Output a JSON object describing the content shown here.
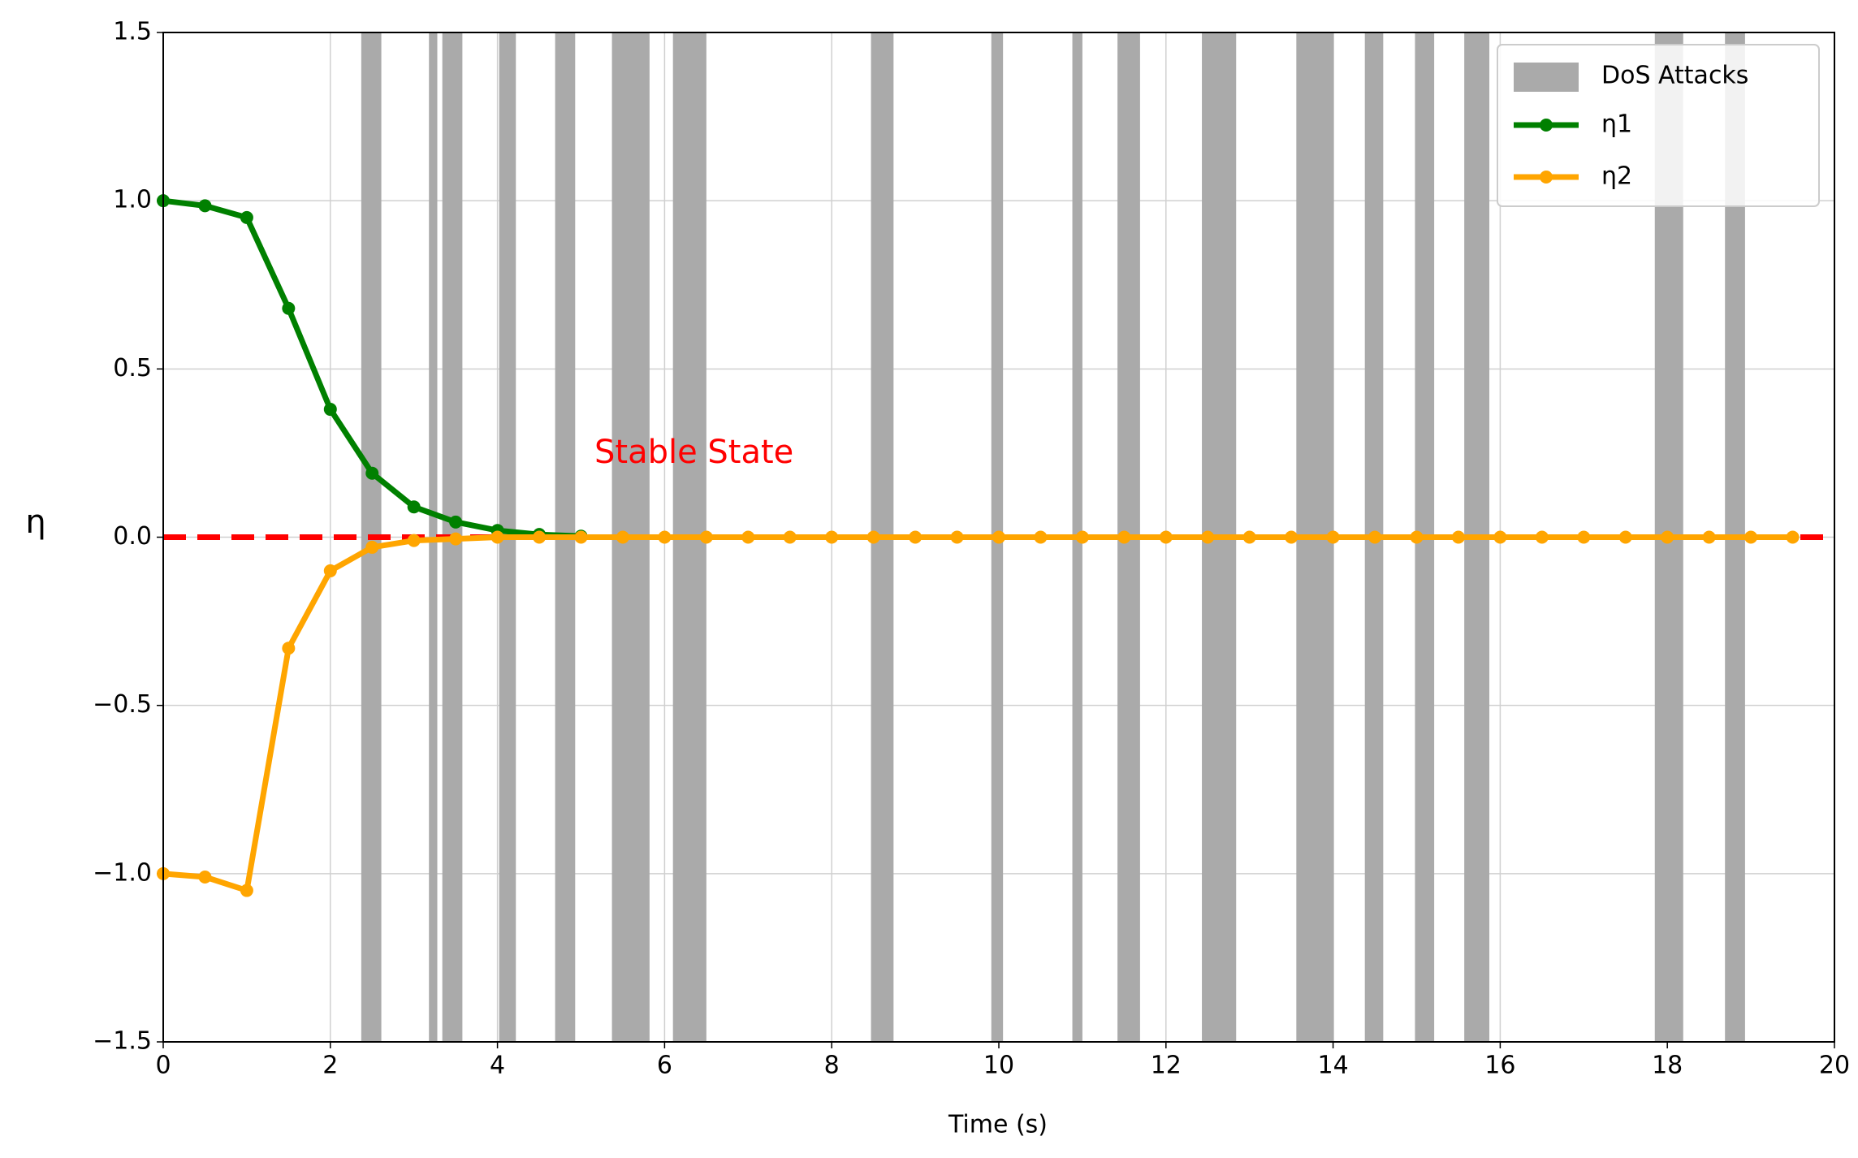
{
  "chart_data": {
    "type": "line",
    "xlabel": "Time (s)",
    "ylabel": "η",
    "xlim": [
      0,
      20
    ],
    "ylim": [
      -1.5,
      1.5
    ],
    "xticks": [
      0,
      2,
      4,
      6,
      8,
      10,
      12,
      14,
      16,
      18,
      20
    ],
    "yticks": [
      {
        "value": -1.5,
        "label": "−1.5"
      },
      {
        "value": -1.0,
        "label": "−1.0"
      },
      {
        "value": -0.5,
        "label": "−0.5"
      },
      {
        "value": 0,
        "label": "0.0"
      },
      {
        "value": 0.5,
        "label": "0.5"
      },
      {
        "value": 1.0,
        "label": "1.0"
      },
      1.5
    ],
    "grid": true,
    "legend": "upper right",
    "shaded_regions": {
      "name": "DoS Attacks",
      "color": "#aaaaaa",
      "intervals": [
        [
          2.37,
          2.61
        ],
        [
          3.18,
          3.28
        ],
        [
          3.34,
          3.58
        ],
        [
          4.02,
          4.22
        ],
        [
          4.69,
          4.93
        ],
        [
          5.37,
          5.82
        ],
        [
          6.1,
          6.5
        ],
        [
          8.47,
          8.74
        ],
        [
          9.91,
          10.05
        ],
        [
          10.88,
          11.0
        ],
        [
          11.42,
          11.69
        ],
        [
          12.43,
          12.84
        ],
        [
          13.56,
          14.01
        ],
        [
          14.38,
          14.6
        ],
        [
          14.98,
          15.21
        ],
        [
          15.57,
          15.87
        ],
        [
          17.85,
          18.19
        ],
        [
          18.69,
          18.93
        ]
      ]
    },
    "series": [
      {
        "name": "η1",
        "color": "#008000",
        "x": [
          0,
          0.5,
          1,
          1.5,
          2,
          2.5,
          3,
          3.5,
          4,
          4.5,
          5
        ],
        "values": [
          1.0,
          0.985,
          0.95,
          0.68,
          0.38,
          0.19,
          0.09,
          0.045,
          0.02,
          0.008,
          0.003
        ]
      },
      {
        "name": "η2",
        "color": "#ffa500",
        "x": [
          0,
          0.5,
          1,
          1.5,
          2,
          2.5,
          3,
          3.5,
          4,
          4.5,
          5,
          5.5,
          6,
          6.5,
          7,
          7.5,
          8,
          8.5,
          9,
          9.5,
          10,
          10.5,
          11,
          11.5,
          12,
          12.5,
          13,
          13.5,
          14,
          14.5,
          15,
          15.5,
          16,
          16.5,
          17,
          17.5,
          18,
          18.5,
          19,
          19.5
        ],
        "values": [
          -1.0,
          -1.01,
          -1.05,
          -0.33,
          -0.1,
          -0.03,
          -0.01,
          -0.005,
          0,
          0,
          0,
          0,
          0,
          0,
          0,
          0,
          0,
          0,
          0,
          0,
          0,
          0,
          0,
          0,
          0,
          0,
          0,
          0,
          0,
          0,
          0,
          0,
          0,
          0,
          0,
          0,
          0,
          0,
          0,
          0
        ]
      }
    ],
    "reference_line": {
      "y": 0,
      "color": "#ff0000"
    },
    "annotation": {
      "text": "Stable State",
      "color": "#ff0000"
    }
  }
}
